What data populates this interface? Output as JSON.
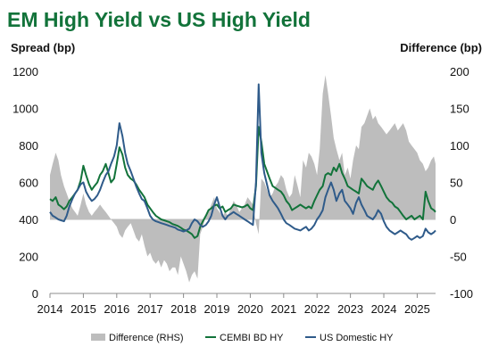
{
  "chart_data": {
    "type": "line",
    "title": "EM High Yield vs US High Yield",
    "ylabel": "Spread (bp)",
    "y2label": "Difference (bp)",
    "xlabel": "",
    "xlim": [
      2014.0,
      2025.55
    ],
    "ylim": [
      0,
      1200
    ],
    "y2lim": [
      -100,
      200
    ],
    "xticks": [
      "2014",
      "2015",
      "2016",
      "2017",
      "2018",
      "2019",
      "2020",
      "2021",
      "2022",
      "2023",
      "2024",
      "2025"
    ],
    "yticks": [
      "0",
      "200",
      "400",
      "600",
      "800",
      "1000",
      "1200"
    ],
    "y2ticks": [
      "-100",
      "-50",
      "0",
      "50",
      "100",
      "150",
      "200"
    ],
    "grid": false,
    "legend_position": "bottom",
    "series": [
      {
        "name": "Difference (RHS)",
        "type": "area",
        "axis": "right",
        "color": "#bdbdbd",
        "x": [
          2014.0,
          2014.08,
          2014.17,
          2014.25,
          2014.33,
          2014.42,
          2014.5,
          2014.58,
          2014.67,
          2014.75,
          2014.83,
          2014.92,
          2015.0,
          2015.08,
          2015.17,
          2015.25,
          2015.33,
          2015.42,
          2015.5,
          2015.58,
          2015.67,
          2015.75,
          2015.83,
          2015.92,
          2016.0,
          2016.08,
          2016.17,
          2016.25,
          2016.33,
          2016.42,
          2016.5,
          2016.58,
          2016.67,
          2016.75,
          2016.83,
          2016.92,
          2017.0,
          2017.08,
          2017.17,
          2017.25,
          2017.33,
          2017.42,
          2017.5,
          2017.58,
          2017.67,
          2017.75,
          2017.83,
          2017.92,
          2018.0,
          2018.08,
          2018.17,
          2018.25,
          2018.33,
          2018.42,
          2018.5,
          2018.58,
          2018.67,
          2018.75,
          2018.83,
          2018.92,
          2019.0,
          2019.08,
          2019.17,
          2019.25,
          2019.33,
          2019.42,
          2019.5,
          2019.58,
          2019.67,
          2019.75,
          2019.83,
          2019.92,
          2020.0,
          2020.08,
          2020.17,
          2020.25,
          2020.33,
          2020.42,
          2020.5,
          2020.58,
          2020.67,
          2020.75,
          2020.83,
          2020.92,
          2021.0,
          2021.08,
          2021.17,
          2021.25,
          2021.33,
          2021.42,
          2021.5,
          2021.58,
          2021.67,
          2021.75,
          2021.83,
          2021.92,
          2022.0,
          2022.08,
          2022.17,
          2022.25,
          2022.33,
          2022.42,
          2022.5,
          2022.58,
          2022.67,
          2022.75,
          2022.83,
          2022.92,
          2023.0,
          2023.08,
          2023.17,
          2023.25,
          2023.33,
          2023.42,
          2023.5,
          2023.58,
          2023.67,
          2023.75,
          2023.83,
          2023.92,
          2024.0,
          2024.08,
          2024.17,
          2024.25,
          2024.33,
          2024.42,
          2024.5,
          2024.58,
          2024.67,
          2024.75,
          2024.83,
          2024.92,
          2025.0,
          2025.08,
          2025.17,
          2025.25,
          2025.33,
          2025.42,
          2025.5,
          2025.55
        ],
        "values": [
          60,
          75,
          90,
          80,
          60,
          45,
          35,
          25,
          15,
          10,
          5,
          20,
          35,
          20,
          10,
          5,
          10,
          15,
          20,
          15,
          10,
          5,
          0,
          -5,
          -10,
          -20,
          -25,
          -15,
          -10,
          -5,
          -15,
          -25,
          -30,
          -20,
          -35,
          -50,
          -45,
          -55,
          -60,
          -55,
          -65,
          -55,
          -60,
          -70,
          -65,
          -65,
          -75,
          -50,
          -60,
          -70,
          -85,
          -75,
          -70,
          -80,
          -20,
          -10,
          5,
          10,
          20,
          30,
          15,
          10,
          5,
          10,
          5,
          15,
          25,
          20,
          10,
          15,
          20,
          30,
          25,
          20,
          -5,
          -20,
          55,
          50,
          40,
          30,
          35,
          45,
          50,
          60,
          55,
          40,
          30,
          35,
          60,
          45,
          30,
          80,
          70,
          90,
          85,
          75,
          60,
          95,
          170,
          195,
          170,
          140,
          110,
          95,
          80,
          90,
          60,
          70,
          55,
          80,
          100,
          95,
          125,
          130,
          140,
          150,
          135,
          140,
          130,
          125,
          120,
          115,
          120,
          125,
          130,
          120,
          125,
          130,
          120,
          105,
          100,
          95,
          90,
          80,
          75,
          65,
          70,
          80,
          85,
          75
        ]
      },
      {
        "name": "CEMBI BD HY",
        "type": "line",
        "axis": "left",
        "color": "#12733a",
        "x": [
          2014.0,
          2014.08,
          2014.17,
          2014.25,
          2014.33,
          2014.42,
          2014.5,
          2014.58,
          2014.67,
          2014.75,
          2014.83,
          2014.92,
          2015.0,
          2015.08,
          2015.17,
          2015.25,
          2015.33,
          2015.42,
          2015.5,
          2015.58,
          2015.67,
          2015.75,
          2015.83,
          2015.92,
          2016.0,
          2016.08,
          2016.17,
          2016.25,
          2016.33,
          2016.42,
          2016.5,
          2016.58,
          2016.67,
          2016.75,
          2016.83,
          2016.92,
          2017.0,
          2017.08,
          2017.17,
          2017.25,
          2017.33,
          2017.42,
          2017.5,
          2017.58,
          2017.67,
          2017.75,
          2017.83,
          2017.92,
          2018.0,
          2018.08,
          2018.17,
          2018.25,
          2018.33,
          2018.42,
          2018.5,
          2018.58,
          2018.67,
          2018.75,
          2018.83,
          2018.92,
          2019.0,
          2019.08,
          2019.17,
          2019.25,
          2019.33,
          2019.42,
          2019.5,
          2019.58,
          2019.67,
          2019.75,
          2019.83,
          2019.92,
          2020.0,
          2020.08,
          2020.17,
          2020.25,
          2020.33,
          2020.42,
          2020.5,
          2020.58,
          2020.67,
          2020.75,
          2020.83,
          2020.92,
          2021.0,
          2021.08,
          2021.17,
          2021.25,
          2021.33,
          2021.42,
          2021.5,
          2021.58,
          2021.67,
          2021.75,
          2021.83,
          2021.92,
          2022.0,
          2022.08,
          2022.17,
          2022.25,
          2022.33,
          2022.42,
          2022.5,
          2022.58,
          2022.67,
          2022.75,
          2022.83,
          2022.92,
          2023.0,
          2023.08,
          2023.17,
          2023.25,
          2023.33,
          2023.42,
          2023.5,
          2023.58,
          2023.67,
          2023.75,
          2023.83,
          2023.92,
          2024.0,
          2024.08,
          2024.17,
          2024.25,
          2024.33,
          2024.42,
          2024.5,
          2024.58,
          2024.67,
          2024.75,
          2024.83,
          2024.92,
          2025.0,
          2025.08,
          2025.17,
          2025.25,
          2025.33,
          2025.42,
          2025.5,
          2025.55
        ],
        "values": [
          510,
          500,
          520,
          480,
          470,
          455,
          470,
          500,
          520,
          540,
          560,
          610,
          690,
          640,
          590,
          560,
          580,
          600,
          640,
          660,
          700,
          650,
          600,
          620,
          700,
          790,
          750,
          680,
          640,
          620,
          610,
          590,
          560,
          540,
          520,
          480,
          460,
          440,
          420,
          410,
          400,
          395,
          390,
          385,
          375,
          370,
          365,
          355,
          345,
          340,
          330,
          320,
          300,
          310,
          360,
          390,
          420,
          450,
          460,
          475,
          480,
          460,
          470,
          440,
          450,
          460,
          480,
          475,
          470,
          465,
          470,
          480,
          460,
          450,
          580,
          900,
          820,
          700,
          660,
          620,
          580,
          570,
          560,
          550,
          530,
          500,
          480,
          450,
          460,
          470,
          480,
          470,
          460,
          470,
          460,
          500,
          530,
          560,
          580,
          640,
          650,
          640,
          680,
          660,
          700,
          650,
          620,
          580,
          570,
          560,
          550,
          540,
          620,
          600,
          580,
          570,
          560,
          590,
          610,
          580,
          550,
          520,
          500,
          490,
          470,
          460,
          440,
          420,
          400,
          410,
          420,
          400,
          410,
          420,
          400,
          550,
          500,
          460,
          450,
          440
        ]
      },
      {
        "name": "US Domestic HY",
        "type": "line",
        "axis": "left",
        "color": "#2f5b8a",
        "x": [
          2014.0,
          2014.08,
          2014.17,
          2014.25,
          2014.33,
          2014.42,
          2014.5,
          2014.58,
          2014.67,
          2014.75,
          2014.83,
          2014.92,
          2015.0,
          2015.08,
          2015.17,
          2015.25,
          2015.33,
          2015.42,
          2015.5,
          2015.58,
          2015.67,
          2015.75,
          2015.83,
          2015.92,
          2016.0,
          2016.08,
          2016.17,
          2016.25,
          2016.33,
          2016.42,
          2016.5,
          2016.58,
          2016.67,
          2016.75,
          2016.83,
          2016.92,
          2017.0,
          2017.08,
          2017.17,
          2017.25,
          2017.33,
          2017.42,
          2017.5,
          2017.58,
          2017.67,
          2017.75,
          2017.83,
          2017.92,
          2018.0,
          2018.08,
          2018.17,
          2018.25,
          2018.33,
          2018.42,
          2018.5,
          2018.58,
          2018.67,
          2018.75,
          2018.83,
          2018.92,
          2019.0,
          2019.08,
          2019.17,
          2019.25,
          2019.33,
          2019.42,
          2019.5,
          2019.58,
          2019.67,
          2019.75,
          2019.83,
          2019.92,
          2020.0,
          2020.08,
          2020.17,
          2020.25,
          2020.33,
          2020.42,
          2020.5,
          2020.58,
          2020.67,
          2020.75,
          2020.83,
          2020.92,
          2021.0,
          2021.08,
          2021.17,
          2021.25,
          2021.33,
          2021.42,
          2021.5,
          2021.58,
          2021.67,
          2021.75,
          2021.83,
          2021.92,
          2022.0,
          2022.08,
          2022.17,
          2022.25,
          2022.33,
          2022.42,
          2022.5,
          2022.58,
          2022.67,
          2022.75,
          2022.83,
          2022.92,
          2023.0,
          2023.08,
          2023.17,
          2023.25,
          2023.33,
          2023.42,
          2023.5,
          2023.58,
          2023.67,
          2023.75,
          2023.83,
          2023.92,
          2024.0,
          2024.08,
          2024.17,
          2024.25,
          2024.33,
          2024.42,
          2024.5,
          2024.58,
          2024.67,
          2024.75,
          2024.83,
          2024.92,
          2025.0,
          2025.08,
          2025.17,
          2025.25,
          2025.33,
          2025.42,
          2025.5,
          2025.55
        ],
        "values": [
          440,
          420,
          410,
          400,
          395,
          390,
          420,
          470,
          510,
          540,
          560,
          590,
          600,
          550,
          520,
          500,
          510,
          530,
          560,
          600,
          640,
          660,
          700,
          740,
          800,
          920,
          850,
          760,
          700,
          660,
          620,
          580,
          540,
          510,
          500,
          460,
          420,
          400,
          390,
          385,
          380,
          375,
          370,
          365,
          360,
          355,
          345,
          340,
          335,
          340,
          350,
          380,
          400,
          390,
          370,
          360,
          370,
          390,
          420,
          480,
          520,
          470,
          420,
          400,
          420,
          430,
          440,
          430,
          420,
          410,
          400,
          390,
          380,
          370,
          600,
          1130,
          760,
          650,
          590,
          530,
          500,
          480,
          460,
          430,
          400,
          380,
          370,
          360,
          350,
          345,
          340,
          350,
          360,
          340,
          350,
          370,
          400,
          420,
          450,
          520,
          560,
          600,
          560,
          500,
          540,
          560,
          500,
          480,
          460,
          430,
          490,
          520,
          480,
          450,
          420,
          410,
          400,
          420,
          450,
          430,
          390,
          360,
          340,
          330,
          320,
          330,
          340,
          330,
          320,
          300,
          290,
          300,
          310,
          300,
          310,
          350,
          330,
          320,
          330,
          340
        ]
      }
    ]
  }
}
